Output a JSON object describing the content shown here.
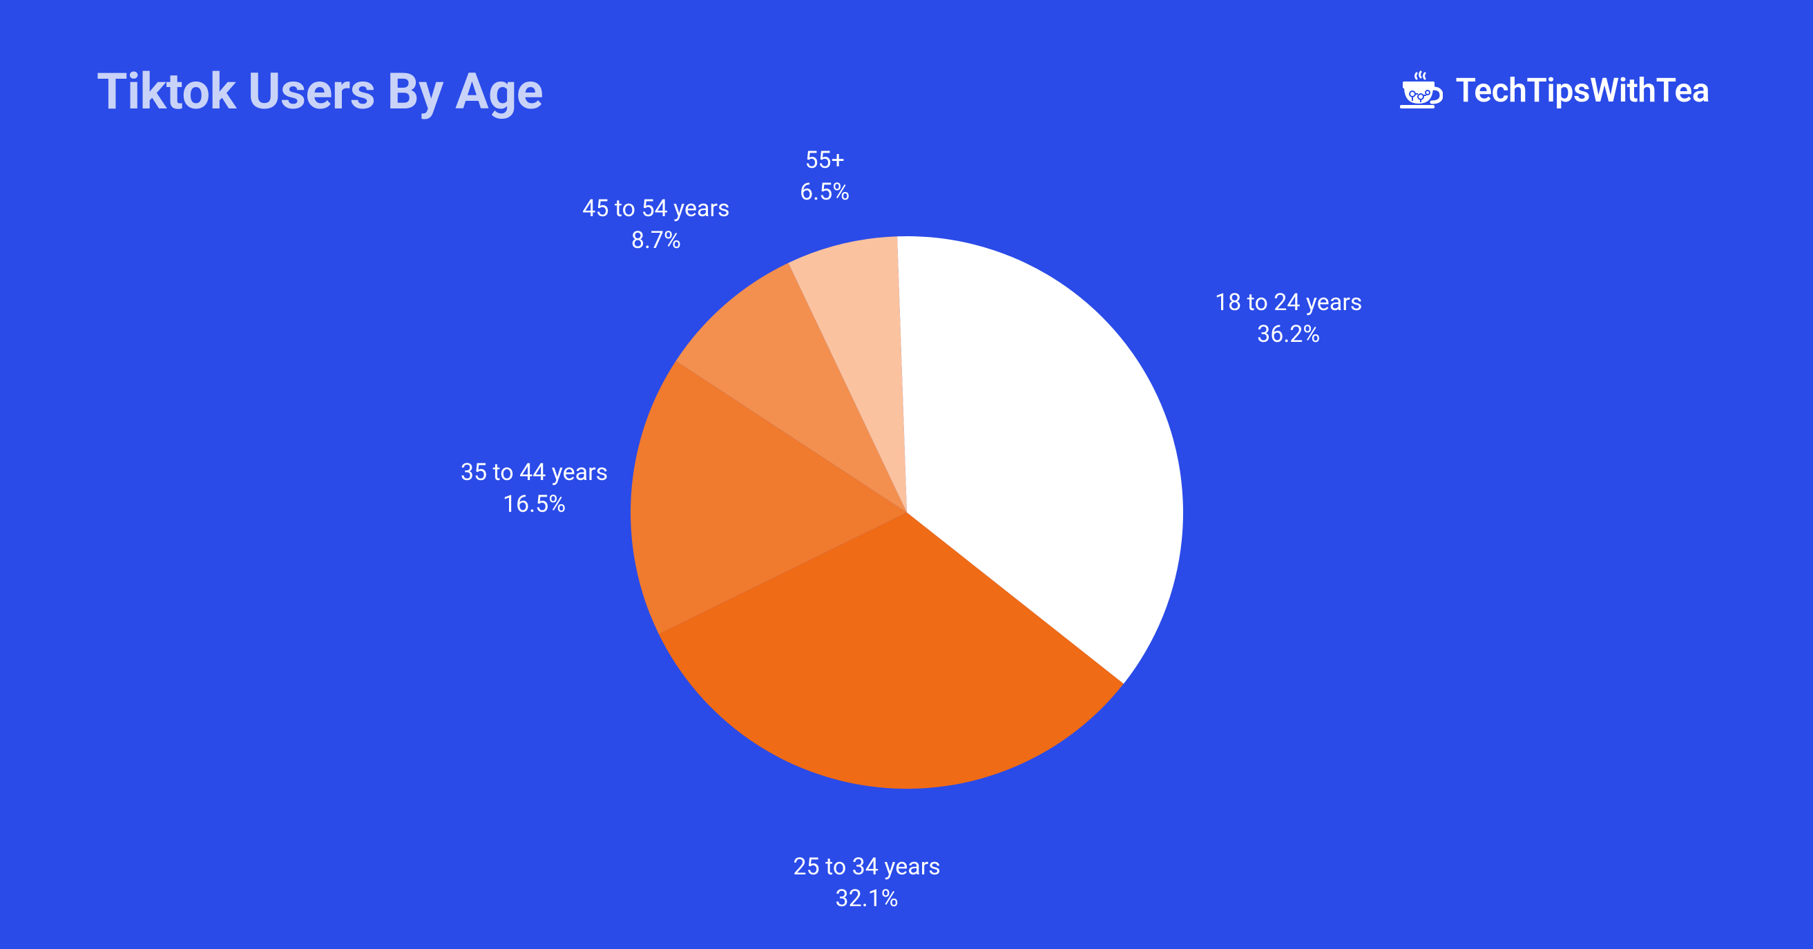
{
  "title": "Tiktok Users By Age",
  "brand": {
    "name": "TechTipsWithTea"
  },
  "colors": {
    "background": "#2a4be8",
    "title": "#c9d3f8",
    "label": "#ffffff"
  },
  "typography": {
    "title_fontsize": 72,
    "title_weight": 700,
    "label_fontsize": 34,
    "brand_fontsize": 48
  },
  "pie_chart": {
    "type": "pie",
    "radius": 400,
    "start_angle_deg": -2,
    "direction": "clockwise",
    "slices": [
      {
        "label": "18 to 24 years",
        "value": 36.2,
        "value_text": "36.2%",
        "color": "#ffffff"
      },
      {
        "label": "25 to 34 years",
        "value": 32.1,
        "value_text": "32.1%",
        "color": "#f06b15"
      },
      {
        "label": "35 to 44 years",
        "value": 16.5,
        "value_text": "16.5%",
        "color": "#f07a2e"
      },
      {
        "label": "45 to 54 years",
        "value": 8.7,
        "value_text": "8.7%",
        "color": "#f3904f"
      },
      {
        "label": "55+",
        "value": 6.5,
        "value_text": "6.5%",
        "color": "#fbc29f"
      }
    ],
    "label_offset": 1.35,
    "label_offsets_by_index": {
      "0": 1.55,
      "3": 1.38,
      "4": 1.25
    }
  }
}
